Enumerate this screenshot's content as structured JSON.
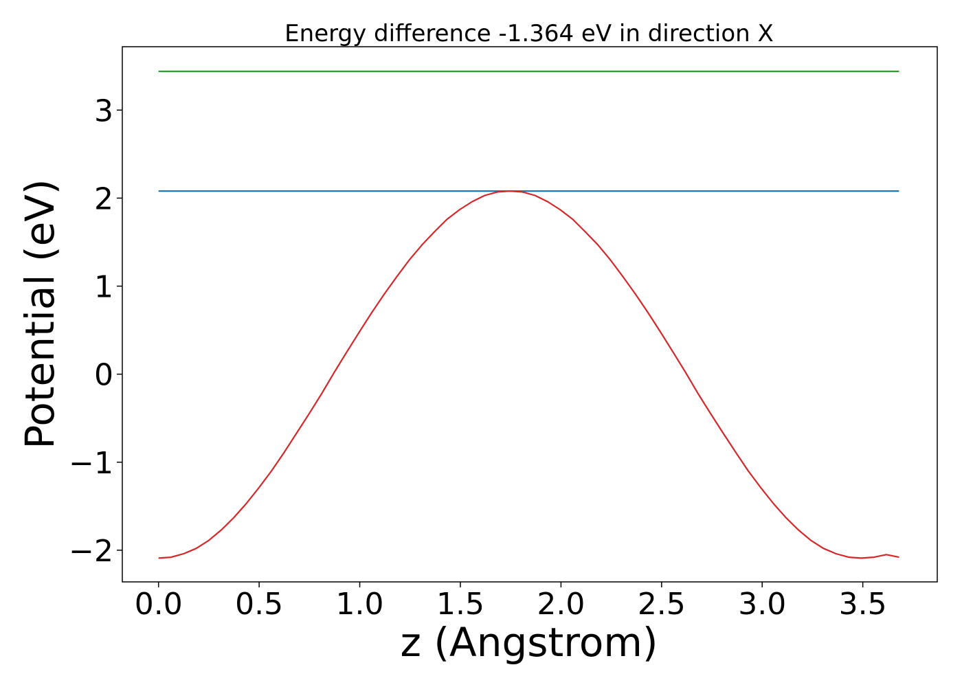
{
  "chart_data": {
    "type": "line",
    "title": "Energy difference -1.364 eV in direction X",
    "xlabel": "z (Angstrom)",
    "ylabel": "Potential (eV)",
    "xlim": [
      -0.18,
      3.87
    ],
    "ylim": [
      -2.36,
      3.72
    ],
    "xticks": [
      0.0,
      0.5,
      1.0,
      1.5,
      2.0,
      2.5,
      3.0,
      3.5
    ],
    "xtick_labels": [
      "0.0",
      "0.5",
      "1.0",
      "1.5",
      "2.0",
      "2.5",
      "3.0",
      "3.5"
    ],
    "yticks": [
      -2,
      -1,
      0,
      1,
      2,
      3
    ],
    "ytick_labels": [
      "−2",
      "−1",
      "0",
      "1",
      "2",
      "3"
    ],
    "grid": false,
    "legend": "none",
    "series": [
      {
        "color": "#2ca02c",
        "x": [
          0.0,
          3.68
        ],
        "y": [
          3.44,
          3.44
        ]
      },
      {
        "color": "#1f77b4",
        "x": [
          0.0,
          3.68
        ],
        "y": [
          2.08,
          2.08
        ]
      },
      {
        "color": "#d62728",
        "x": [
          0.0,
          0.062,
          0.125,
          0.187,
          0.249,
          0.312,
          0.374,
          0.436,
          0.499,
          0.561,
          0.624,
          0.686,
          0.748,
          0.811,
          0.873,
          0.935,
          0.998,
          1.06,
          1.122,
          1.185,
          1.247,
          1.31,
          1.372,
          1.434,
          1.497,
          1.559,
          1.621,
          1.684,
          1.746,
          1.808,
          1.871,
          1.933,
          1.995,
          2.058,
          2.12,
          2.183,
          2.245,
          2.307,
          2.37,
          2.432,
          2.494,
          2.557,
          2.619,
          2.681,
          2.744,
          2.806,
          2.869,
          2.931,
          2.993,
          3.056,
          3.118,
          3.18,
          3.243,
          3.305,
          3.367,
          3.43,
          3.492,
          3.555,
          3.617,
          3.68
        ],
        "y": [
          -2.09,
          -2.08,
          -2.04,
          -1.98,
          -1.89,
          -1.77,
          -1.63,
          -1.47,
          -1.29,
          -1.1,
          -0.89,
          -0.67,
          -0.45,
          -0.22,
          0.02,
          0.25,
          0.48,
          0.7,
          0.91,
          1.11,
          1.3,
          1.47,
          1.62,
          1.76,
          1.87,
          1.96,
          2.03,
          2.07,
          2.08,
          2.07,
          2.03,
          1.96,
          1.87,
          1.76,
          1.62,
          1.47,
          1.3,
          1.11,
          0.91,
          0.7,
          0.48,
          0.25,
          0.02,
          -0.22,
          -0.45,
          -0.67,
          -0.89,
          -1.1,
          -1.29,
          -1.47,
          -1.63,
          -1.77,
          -1.89,
          -1.98,
          -2.04,
          -2.08,
          -2.09,
          -2.08,
          -2.05,
          -2.08
        ]
      }
    ]
  }
}
